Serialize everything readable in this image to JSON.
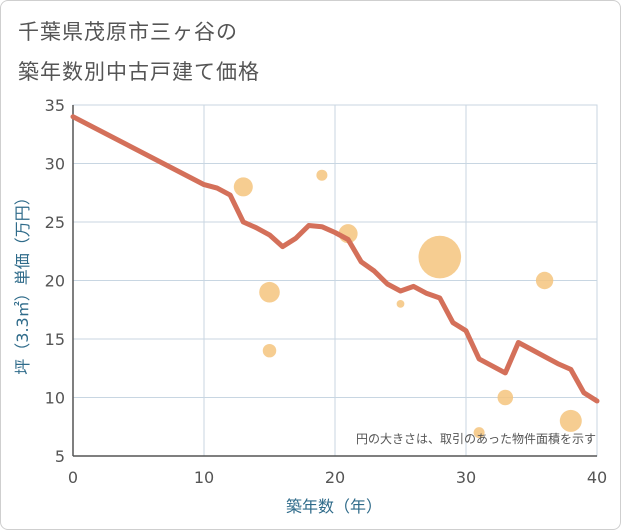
{
  "chart_data": {
    "type": "scatter",
    "title_line1": "千葉県茂原市三ヶ谷の",
    "title_line2": "築年数別中古戸建て価格",
    "xlabel": "築年数（年）",
    "ylabel": "坪（3.3㎡）単価（万円）",
    "xlim": [
      0,
      40
    ],
    "ylim": [
      5,
      35
    ],
    "xticks": [
      0,
      10,
      20,
      30,
      40
    ],
    "yticks": [
      5,
      10,
      15,
      20,
      25,
      30,
      35
    ],
    "note": "円の大きさは、取引のあった物件面積を示す",
    "colors": {
      "line": "#d4705a",
      "bubble": "#f5c47e",
      "grid": "#c8d6e2",
      "axis": "#555555"
    },
    "trend_line": [
      [
        0,
        34.0
      ],
      [
        10,
        28.2
      ],
      [
        11,
        27.9
      ],
      [
        12,
        27.3
      ],
      [
        13,
        25.0
      ],
      [
        14,
        24.5
      ],
      [
        15,
        23.9
      ],
      [
        16,
        22.9
      ],
      [
        17,
        23.6
      ],
      [
        18,
        24.7
      ],
      [
        19,
        24.6
      ],
      [
        20,
        24.1
      ],
      [
        21,
        23.5
      ],
      [
        22,
        21.6
      ],
      [
        23,
        20.8
      ],
      [
        24,
        19.7
      ],
      [
        25,
        19.1
      ],
      [
        26,
        19.5
      ],
      [
        27,
        18.9
      ],
      [
        28,
        18.5
      ],
      [
        29,
        16.4
      ],
      [
        30,
        15.7
      ],
      [
        31,
        13.3
      ],
      [
        32,
        12.7
      ],
      [
        33,
        12.1
      ],
      [
        34,
        14.7
      ],
      [
        35,
        14.1
      ],
      [
        36,
        13.5
      ],
      [
        37,
        12.9
      ],
      [
        38,
        12.4
      ],
      [
        39,
        10.4
      ],
      [
        40,
        9.7
      ]
    ],
    "bubbles": [
      {
        "x": 13,
        "y": 28.0,
        "size": 3
      },
      {
        "x": 15,
        "y": 19.0,
        "size": 3.5
      },
      {
        "x": 15,
        "y": 14.0,
        "size": 1.5
      },
      {
        "x": 19,
        "y": 29.0,
        "size": 1
      },
      {
        "x": 21,
        "y": 24.0,
        "size": 3
      },
      {
        "x": 25,
        "y": 18.0,
        "size": 0.5
      },
      {
        "x": 28,
        "y": 22.0,
        "size": 15
      },
      {
        "x": 31,
        "y": 7.0,
        "size": 1
      },
      {
        "x": 33,
        "y": 10.0,
        "size": 2
      },
      {
        "x": 36,
        "y": 20.0,
        "size": 2.5
      },
      {
        "x": 38,
        "y": 8.0,
        "size": 4
      }
    ]
  }
}
